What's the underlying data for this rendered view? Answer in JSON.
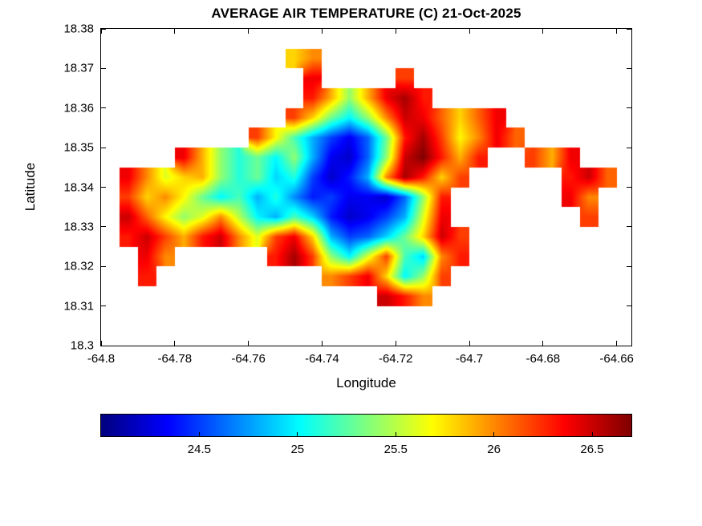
{
  "chart_data": {
    "type": "heatmap",
    "title": "AVERAGE AIR TEMPERATURE (C) 21-Oct-2025",
    "xlabel": "Longitude",
    "ylabel": "Latitude",
    "xlim": [
      -64.8,
      -64.656
    ],
    "ylim": [
      18.3,
      18.38
    ],
    "xticks": [
      -64.8,
      -64.78,
      -64.76,
      -64.74,
      -64.72,
      -64.7,
      -64.68,
      -64.66
    ],
    "xtick_labels": [
      "-64.8",
      "-64.78",
      "-64.76",
      "-64.74",
      "-64.72",
      "-64.7",
      "-64.68",
      "-64.66"
    ],
    "yticks": [
      18.3,
      18.31,
      18.32,
      18.33,
      18.34,
      18.35,
      18.36,
      18.37,
      18.38
    ],
    "ytick_labels": [
      "18.3",
      "18.31",
      "18.32",
      "18.33",
      "18.34",
      "18.35",
      "18.36",
      "18.37",
      "18.38"
    ],
    "grid_lines": false,
    "colorbar": {
      "orientation": "horizontal",
      "colormap": "jet",
      "min": 24.0,
      "max": 26.7,
      "ticks": [
        24.5,
        25.0,
        25.5,
        26.0,
        26.5
      ],
      "tick_labels": [
        "24.5",
        "25",
        "25.5",
        "26",
        "26.5"
      ]
    },
    "grid": {
      "comment": "Air temperature (C) on lon/lat grid; null = sea (no data). Rows top-to-bottom from lat_start.",
      "lon_start": -64.8,
      "lat_start": 18.38,
      "cell_deg": 0.005,
      "ncols": 28,
      "nrows": 16,
      "values": [
        [
          null,
          null,
          null,
          null,
          null,
          null,
          null,
          null,
          null,
          null,
          null,
          null,
          null,
          null,
          null,
          null,
          null,
          null,
          null,
          null,
          null,
          null,
          null,
          null,
          null,
          null,
          null,
          null
        ],
        [
          null,
          null,
          null,
          null,
          null,
          null,
          null,
          null,
          null,
          null,
          25.8,
          26.0,
          null,
          null,
          null,
          null,
          null,
          null,
          null,
          null,
          null,
          null,
          null,
          null,
          null,
          null,
          null,
          null
        ],
        [
          null,
          null,
          null,
          null,
          null,
          null,
          null,
          null,
          null,
          null,
          null,
          26.4,
          null,
          null,
          null,
          null,
          26.2,
          null,
          null,
          null,
          null,
          null,
          null,
          null,
          null,
          null,
          null,
          null
        ],
        [
          null,
          null,
          null,
          null,
          null,
          null,
          null,
          null,
          null,
          null,
          null,
          26.3,
          25.9,
          25.4,
          25.9,
          26.4,
          26.6,
          26.3,
          null,
          null,
          null,
          null,
          null,
          null,
          null,
          null,
          null,
          null
        ],
        [
          null,
          null,
          null,
          null,
          null,
          null,
          null,
          null,
          null,
          null,
          26.2,
          25.8,
          25.3,
          25.0,
          25.4,
          26.0,
          26.5,
          26.4,
          26.1,
          25.8,
          26.1,
          26.4,
          null,
          null,
          null,
          null,
          null,
          null
        ],
        [
          null,
          null,
          null,
          null,
          null,
          null,
          null,
          null,
          26.2,
          25.7,
          25.2,
          24.8,
          24.5,
          24.3,
          24.6,
          25.3,
          26.3,
          26.6,
          26.2,
          25.7,
          26.0,
          26.4,
          26.1,
          null,
          null,
          null,
          null,
          null
        ],
        [
          null,
          null,
          null,
          null,
          26.4,
          25.9,
          25.4,
          25.1,
          25.3,
          25.0,
          25.4,
          24.8,
          24.3,
          24.2,
          24.6,
          25.4,
          26.5,
          26.7,
          26.3,
          25.9,
          26.3,
          null,
          null,
          26.2,
          25.9,
          26.4,
          null,
          null
        ],
        [
          null,
          26.4,
          26.0,
          25.6,
          25.8,
          25.9,
          25.4,
          25.1,
          25.3,
          24.9,
          25.1,
          24.5,
          24.2,
          24.4,
          24.8,
          26.0,
          26.6,
          26.3,
          25.8,
          26.2,
          null,
          null,
          null,
          null,
          null,
          26.3,
          26.5,
          26.1
        ],
        [
          null,
          26.2,
          25.8,
          26.0,
          25.7,
          25.3,
          25.0,
          25.2,
          24.8,
          25.1,
          24.7,
          24.4,
          24.5,
          24.3,
          24.3,
          24.2,
          24.6,
          25.4,
          26.3,
          null,
          null,
          null,
          null,
          null,
          null,
          26.4,
          26.0,
          null
        ],
        [
          null,
          26.5,
          26.1,
          25.7,
          25.4,
          25.6,
          26.0,
          25.5,
          25.0,
          24.8,
          25.2,
          24.9,
          24.4,
          24.2,
          24.3,
          24.5,
          24.8,
          25.6,
          26.4,
          null,
          null,
          null,
          null,
          null,
          null,
          null,
          26.2,
          null
        ],
        [
          null,
          26.3,
          26.5,
          26.2,
          25.9,
          26.3,
          26.5,
          26.0,
          25.6,
          26.2,
          26.4,
          25.8,
          24.8,
          24.5,
          24.6,
          24.9,
          25.3,
          25.8,
          26.5,
          26.2,
          null,
          null,
          null,
          null,
          null,
          null,
          null,
          null
        ],
        [
          null,
          null,
          26.4,
          26.0,
          null,
          null,
          null,
          null,
          null,
          26.3,
          26.6,
          26.2,
          25.4,
          25.0,
          25.6,
          26.2,
          25.2,
          24.9,
          26.0,
          26.3,
          null,
          null,
          null,
          null,
          null,
          null,
          null,
          null
        ],
        [
          null,
          null,
          26.3,
          null,
          null,
          null,
          null,
          null,
          null,
          null,
          null,
          null,
          26.0,
          26.2,
          26.4,
          25.8,
          25.0,
          25.4,
          26.2,
          null,
          null,
          null,
          null,
          null,
          null,
          null,
          null,
          null
        ],
        [
          null,
          null,
          null,
          null,
          null,
          null,
          null,
          null,
          null,
          null,
          null,
          null,
          null,
          null,
          null,
          26.5,
          26.3,
          26.0,
          null,
          null,
          null,
          null,
          null,
          null,
          null,
          null,
          null,
          null
        ],
        [
          null,
          null,
          null,
          null,
          null,
          null,
          null,
          null,
          null,
          null,
          null,
          null,
          null,
          null,
          null,
          null,
          null,
          null,
          null,
          null,
          null,
          null,
          null,
          null,
          null,
          null,
          null,
          null
        ],
        [
          null,
          null,
          null,
          null,
          null,
          null,
          null,
          null,
          null,
          null,
          null,
          null,
          null,
          null,
          null,
          null,
          null,
          null,
          null,
          null,
          null,
          null,
          null,
          null,
          null,
          null,
          null,
          null
        ]
      ]
    }
  }
}
